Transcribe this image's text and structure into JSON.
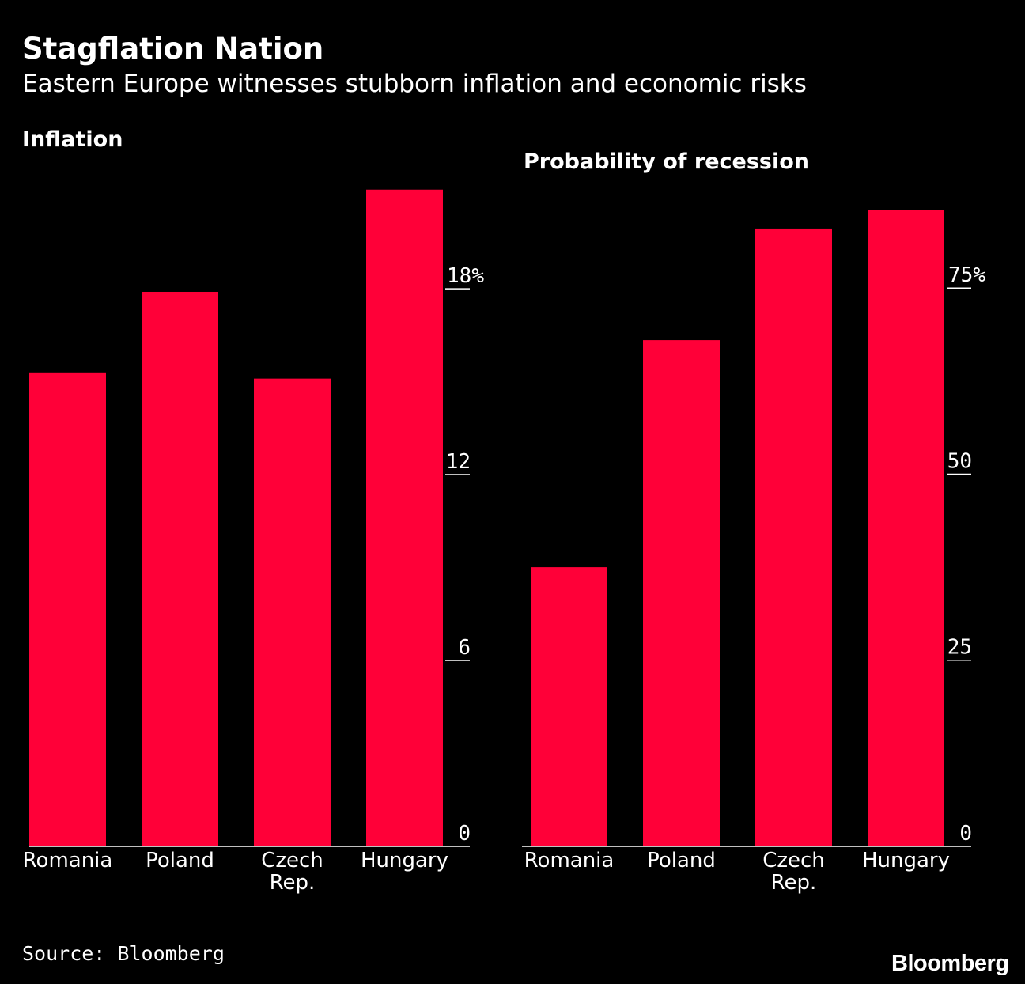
{
  "header": {
    "title": "Stagflation Nation",
    "subtitle": "Eastern Europe witnesses stubborn inflation and economic risks"
  },
  "footer": {
    "source": "Source: Bloomberg",
    "brand": "Bloomberg"
  },
  "colors": {
    "background": "#000000",
    "bar": "#ff0038",
    "text": "#ffffff",
    "axis": "#ffffff"
  },
  "chart_data": [
    {
      "type": "bar",
      "title": "Inflation",
      "categories": [
        "Romania",
        "Poland",
        "Czech Rep.",
        "Hungary"
      ],
      "category_lines": [
        [
          "Romania"
        ],
        [
          "Poland"
        ],
        [
          "Czech",
          "Rep."
        ],
        [
          "Hungary"
        ]
      ],
      "values": [
        15.3,
        17.9,
        15.1,
        21.2
      ],
      "ylim": [
        0,
        21.5
      ],
      "yticks": [
        0,
        6,
        12,
        18
      ],
      "ytick_labels": [
        "0",
        "6",
        "12",
        "18%"
      ],
      "axis_side": "right",
      "grid": false,
      "legend": "none"
    },
    {
      "type": "bar",
      "title": "Probability of recession",
      "categories": [
        "Romania",
        "Poland",
        "Czech Rep.",
        "Hungary"
      ],
      "category_lines": [
        [
          "Romania"
        ],
        [
          "Poland"
        ],
        [
          "Czech",
          "Rep."
        ],
        [
          "Hungary"
        ]
      ],
      "values": [
        37.5,
        68,
        83,
        85.5
      ],
      "ylim": [
        0,
        86.5
      ],
      "yticks": [
        0,
        25,
        50,
        75
      ],
      "ytick_labels": [
        "0",
        "25",
        "50",
        "75%"
      ],
      "axis_side": "right",
      "grid": false,
      "legend": "none"
    }
  ]
}
